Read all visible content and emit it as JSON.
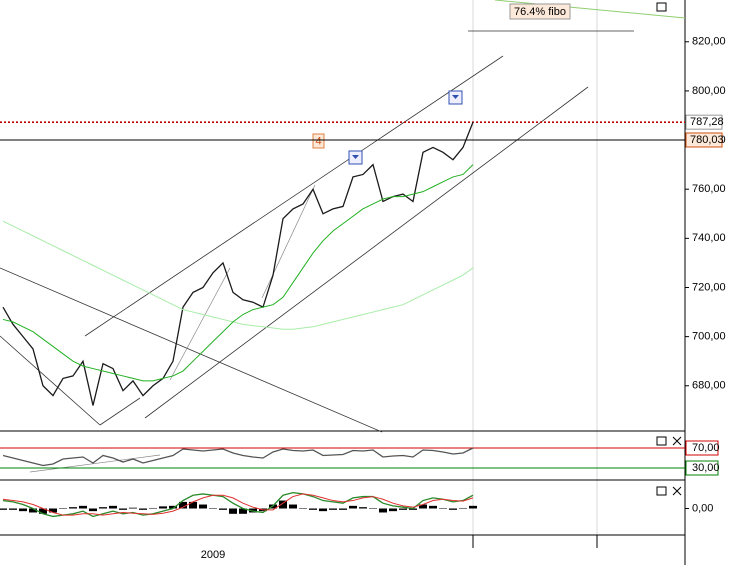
{
  "chart_data": [
    {
      "type": "line",
      "categories": [
        null,
        null,
        null,
        null,
        null,
        null,
        null,
        null,
        null,
        null,
        null,
        null,
        null,
        null,
        null,
        null,
        null,
        null,
        null,
        null,
        null,
        "2009",
        null,
        null,
        null,
        null,
        null,
        null,
        null,
        null,
        null,
        null,
        null,
        null,
        null,
        null,
        null,
        null,
        null,
        null,
        null,
        null,
        null,
        null,
        null,
        null,
        null,
        null
      ],
      "series": [
        {
          "color": "#1a1a1a",
          "values": [
            712,
            705,
            700,
            695,
            680,
            676,
            683,
            684,
            690,
            672,
            689,
            687,
            678,
            682,
            676,
            680,
            683,
            690,
            712,
            718,
            720,
            726,
            730,
            718,
            715,
            714,
            712,
            725,
            748,
            752,
            754,
            760,
            750,
            752,
            753,
            765,
            766,
            770,
            755,
            757,
            758,
            755,
            775,
            777,
            775,
            772,
            777,
            787.28
          ]
        },
        {
          "color": "#a8eca8",
          "values": [
            747,
            745,
            743,
            741,
            739,
            737,
            735,
            733,
            731,
            729,
            727,
            725,
            723,
            721,
            719,
            717,
            715,
            713,
            711,
            710,
            709,
            708,
            707,
            706,
            705,
            704.5,
            704,
            703.5,
            703,
            703,
            703.5,
            704,
            705,
            706,
            707,
            708,
            709,
            710,
            711,
            712,
            713,
            715,
            717,
            719,
            721,
            723,
            725,
            728
          ]
        },
        {
          "color": "#22b022",
          "values": [
            707,
            706,
            704,
            702,
            699,
            696,
            693,
            690,
            688,
            687,
            686,
            685,
            684,
            683,
            682,
            682,
            683,
            684,
            686,
            690,
            694,
            698,
            702,
            706,
            709,
            711,
            712,
            713,
            716,
            722,
            728,
            734,
            739,
            743,
            746,
            749,
            752,
            754,
            756,
            757,
            757,
            758,
            759,
            761,
            763,
            765,
            766,
            770
          ]
        }
      ],
      "ylim": [
        662,
        837
      ],
      "yticks": [
        {
          "value": 680,
          "label": "680,00"
        },
        {
          "value": 700,
          "label": "700,00"
        },
        {
          "value": 720,
          "label": "720,00"
        },
        {
          "value": 740,
          "label": "740,00"
        },
        {
          "value": 760,
          "label": "760,00"
        },
        {
          "value": 780,
          "label": "780,00"
        },
        {
          "value": 800,
          "label": "800,00"
        },
        {
          "value": 820,
          "label": "820,00"
        }
      ],
      "price_lines": [
        {
          "value": 787.28,
          "label": "787,28",
          "color": "#c00000"
        },
        {
          "value": 780.03,
          "label": "780,03",
          "color": "#000000"
        }
      ],
      "annotations": [
        "4",
        "76.4% fibo"
      ]
    },
    {
      "type": "line",
      "series": [
        {
          "color": "#555555",
          "values": [
            55,
            50,
            45,
            40,
            35,
            38,
            48,
            50,
            52,
            40,
            55,
            50,
            42,
            48,
            40,
            45,
            50,
            55,
            68,
            66,
            64,
            66,
            68,
            60,
            55,
            52,
            50,
            62,
            68,
            65,
            64,
            66,
            55,
            56,
            57,
            65,
            64,
            66,
            52,
            54,
            55,
            52,
            66,
            65,
            62,
            58,
            60,
            70
          ]
        }
      ],
      "ylim": [
        10,
        102
      ],
      "yticks": [
        {
          "value": 70,
          "label": "70,00"
        },
        {
          "value": 30,
          "label": "30,00"
        }
      ],
      "tick_colors": [
        "#d00000",
        "#008000"
      ]
    },
    {
      "type": "line",
      "series": [
        {
          "color": "#2a8a2a",
          "values": [
            0.3,
            0.25,
            0.15,
            0.0,
            -0.2,
            -0.3,
            -0.25,
            -0.2,
            -0.1,
            -0.3,
            -0.2,
            -0.1,
            -0.2,
            -0.15,
            -0.25,
            -0.2,
            -0.1,
            0.0,
            0.3,
            0.5,
            0.55,
            0.5,
            0.45,
            0.2,
            0.0,
            -0.1,
            -0.15,
            0.1,
            0.5,
            0.6,
            0.55,
            0.45,
            0.3,
            0.25,
            0.2,
            0.4,
            0.45,
            0.45,
            0.2,
            0.1,
            0.05,
            0.0,
            0.3,
            0.4,
            0.35,
            0.25,
            0.3,
            0.5
          ]
        },
        {
          "color": "#e03030",
          "values": [
            0.35,
            0.3,
            0.25,
            0.15,
            0.0,
            -0.15,
            -0.25,
            -0.25,
            -0.2,
            -0.2,
            -0.25,
            -0.2,
            -0.15,
            -0.18,
            -0.2,
            -0.22,
            -0.18,
            -0.1,
            0.05,
            0.25,
            0.4,
            0.5,
            0.5,
            0.4,
            0.2,
            0.05,
            -0.05,
            -0.05,
            0.2,
            0.45,
            0.55,
            0.5,
            0.4,
            0.3,
            0.25,
            0.3,
            0.4,
            0.45,
            0.35,
            0.2,
            0.1,
            0.05,
            0.15,
            0.3,
            0.35,
            0.3,
            0.28,
            0.4
          ]
        }
      ],
      "histogram": {
        "color": "#000000",
        "values": [
          -0.05,
          -0.05,
          -0.1,
          -0.15,
          -0.2,
          -0.15,
          0,
          0.05,
          0.1,
          -0.1,
          0.05,
          0.1,
          -0.05,
          0.03,
          -0.05,
          0.02,
          0.08,
          0.1,
          0.25,
          0.25,
          0.15,
          0,
          -0.05,
          -0.2,
          -0.2,
          -0.15,
          -0.1,
          0.15,
          0.3,
          0.15,
          0,
          -0.05,
          -0.1,
          -0.05,
          -0.05,
          0.1,
          0.05,
          0,
          -0.15,
          -0.1,
          -0.05,
          -0.05,
          0.15,
          0.1,
          0,
          -0.05,
          0.02,
          0.1
        ]
      },
      "ylim": [
        -1,
        1
      ],
      "yticks": [
        {
          "value": 0,
          "label": "0,00"
        }
      ]
    }
  ]
}
